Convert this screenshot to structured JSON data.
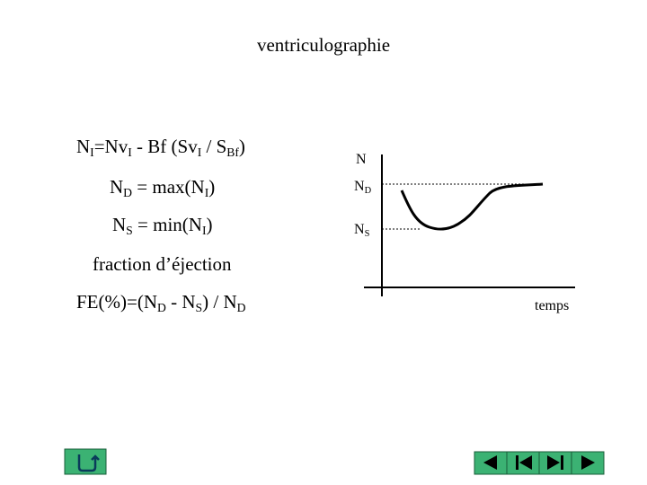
{
  "title": "ventriculographie",
  "formulas": [
    {
      "parts": [
        "N",
        {
          "sub": "I"
        },
        "=Nv",
        {
          "sub": "I"
        },
        " - Bf (Sv",
        {
          "sub": "I"
        },
        " / S",
        {
          "sub": "Bf"
        },
        ")"
      ]
    },
    {
      "parts": [
        "N",
        {
          "sub": "D"
        },
        " = max(N",
        {
          "sub": "I"
        },
        ")"
      ]
    },
    {
      "parts": [
        "N",
        {
          "sub": "S"
        },
        " = min(N",
        {
          "sub": "I"
        },
        ")"
      ]
    },
    {
      "parts": [
        "fraction d’éjection"
      ]
    },
    {
      "parts": [
        "FE(%)=(N",
        {
          "sub": "D"
        },
        " - N",
        {
          "sub": "S"
        },
        ") / N",
        {
          "sub": "D"
        }
      ]
    }
  ],
  "graph": {
    "y_label": {
      "parts": [
        "N"
      ]
    },
    "levels": [
      {
        "parts": [
          "N",
          {
            "sub": "D"
          }
        ]
      },
      {
        "parts": [
          "N",
          {
            "sub": "S"
          }
        ]
      }
    ],
    "x_label": {
      "parts": [
        "temps"
      ]
    }
  }
}
